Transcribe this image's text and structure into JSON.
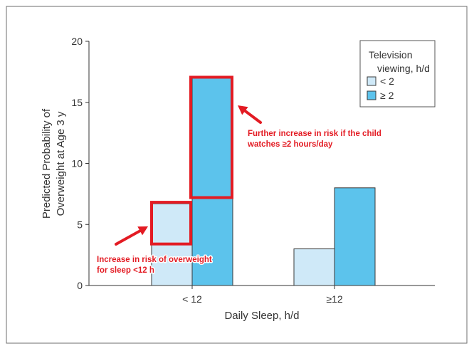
{
  "chart_data": {
    "type": "bar",
    "xlabel": "Daily Sleep, h/d",
    "ylabel_lines": [
      "Predicted Probability of",
      "Overweight at Age 3 y"
    ],
    "categories": [
      "< 12",
      "≥12"
    ],
    "series": [
      {
        "name": "< 2",
        "values": [
          6.7,
          3.0
        ],
        "color": "#cfe9f8"
      },
      {
        "name": "≥ 2",
        "values": [
          17.0,
          8.0
        ],
        "color": "#5cc3ec"
      }
    ],
    "ylim": [
      0,
      20
    ],
    "yticks": [
      0,
      5,
      10,
      15,
      20
    ],
    "grid": false,
    "legend": {
      "title_lines": [
        "Television",
        "viewing, h/d"
      ],
      "placement": "top-right"
    },
    "annotations": {
      "color": "#e31b23",
      "low_sleep": [
        "Increase in risk of overweight",
        "for sleep <12 h"
      ],
      "tv": [
        "Further increase in risk if the child",
        "watches ≥2 hours/day"
      ]
    }
  }
}
